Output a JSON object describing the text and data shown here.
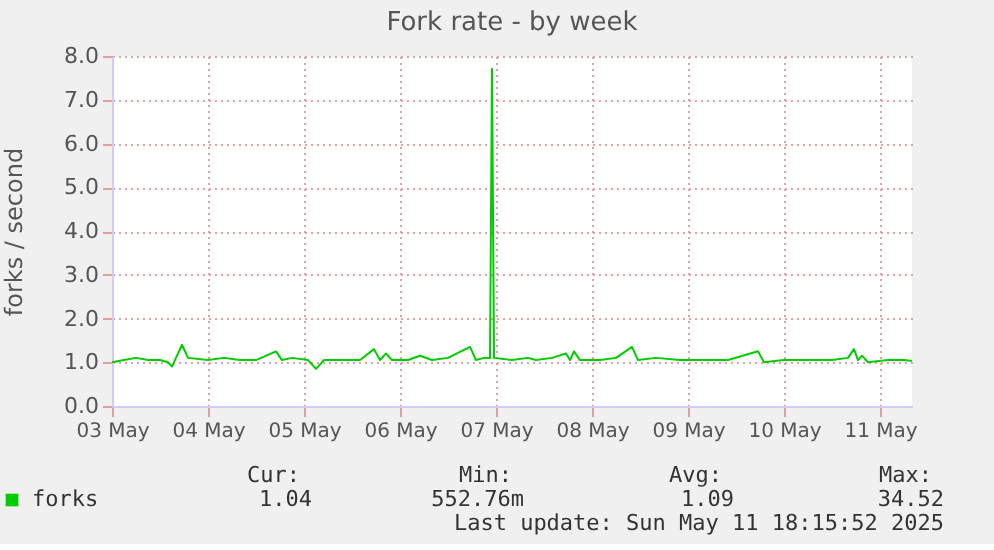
{
  "chart_data": {
    "type": "line",
    "title": "Fork rate - by week",
    "ylabel": "forks / second",
    "x": [
      "2025-05-03T00:00",
      "2025-05-03T03:00",
      "2025-05-03T06:00",
      "2025-05-03T09:00",
      "2025-05-03T12:00",
      "2025-05-03T14:00",
      "2025-05-03T15:00",
      "2025-05-03T16:00",
      "2025-05-03T17:30",
      "2025-05-03T19:00",
      "2025-05-04T00:00",
      "2025-05-04T04:00",
      "2025-05-04T08:00",
      "2025-05-04T12:00",
      "2025-05-04T17:00",
      "2025-05-04T18:30",
      "2025-05-04T21:00",
      "2025-05-05T01:00",
      "2025-05-05T03:00",
      "2025-05-05T05:00",
      "2025-05-05T10:00",
      "2025-05-05T14:00",
      "2025-05-05T17:30",
      "2025-05-05T19:00",
      "2025-05-05T20:30",
      "2025-05-05T22:00",
      "2025-05-06T02:00",
      "2025-05-06T05:00",
      "2025-05-06T08:00",
      "2025-05-06T12:00",
      "2025-05-06T17:30",
      "2025-05-06T19:00",
      "2025-05-06T21:00",
      "2025-05-06T22:30",
      "2025-05-06T23:00",
      "2025-05-06T23:30",
      "2025-05-07T04:00",
      "2025-05-07T08:00",
      "2025-05-07T10:00",
      "2025-05-07T14:00",
      "2025-05-07T17:30",
      "2025-05-07T18:30",
      "2025-05-07T19:30",
      "2025-05-07T21:00",
      "2025-05-08T02:00",
      "2025-05-08T06:00",
      "2025-05-08T10:00",
      "2025-05-08T11:30",
      "2025-05-08T16:00",
      "2025-05-08T22:00",
      "2025-05-09T04:00",
      "2025-05-09T10:00",
      "2025-05-09T17:30",
      "2025-05-09T19:00",
      "2025-05-10T00:00",
      "2025-05-10T06:00",
      "2025-05-10T12:00",
      "2025-05-10T16:00",
      "2025-05-10T17:30",
      "2025-05-10T18:30",
      "2025-05-10T19:30",
      "2025-05-10T21:00",
      "2025-05-11T02:00",
      "2025-05-11T06:00",
      "2025-05-11T08:00"
    ],
    "series": [
      {
        "name": "forks",
        "color": "#00cc00",
        "values": [
          1.0,
          1.05,
          1.1,
          1.05,
          1.05,
          1.0,
          0.9,
          1.1,
          1.4,
          1.1,
          1.05,
          1.1,
          1.05,
          1.05,
          1.25,
          1.05,
          1.1,
          1.05,
          0.85,
          1.05,
          1.05,
          1.05,
          1.3,
          1.05,
          1.2,
          1.05,
          1.05,
          1.15,
          1.05,
          1.1,
          1.35,
          1.05,
          1.1,
          1.1,
          7.7,
          1.1,
          1.05,
          1.1,
          1.05,
          1.1,
          1.2,
          1.05,
          1.25,
          1.05,
          1.05,
          1.1,
          1.35,
          1.05,
          1.1,
          1.05,
          1.05,
          1.05,
          1.25,
          1.0,
          1.05,
          1.05,
          1.05,
          1.1,
          1.3,
          1.05,
          1.15,
          1.0,
          1.05,
          1.05,
          1.03
        ]
      }
    ],
    "xlim": [
      "2025-05-03",
      "2025-05-11T08:00"
    ],
    "xticks": [
      {
        "value": "2025-05-03",
        "label": "03 May"
      },
      {
        "value": "2025-05-04",
        "label": "04 May"
      },
      {
        "value": "2025-05-05",
        "label": "05 May"
      },
      {
        "value": "2025-05-06",
        "label": "06 May"
      },
      {
        "value": "2025-05-07",
        "label": "07 May"
      },
      {
        "value": "2025-05-08",
        "label": "08 May"
      },
      {
        "value": "2025-05-09",
        "label": "09 May"
      },
      {
        "value": "2025-05-10",
        "label": "10 May"
      },
      {
        "value": "2025-05-11",
        "label": "11 May"
      }
    ],
    "ylim": [
      0,
      8
    ],
    "yticks": [
      {
        "value": 0,
        "label": "0.0"
      },
      {
        "value": 1,
        "label": "1.0"
      },
      {
        "value": 2,
        "label": "2.0"
      },
      {
        "value": 3,
        "label": "3.0"
      },
      {
        "value": 4,
        "label": "4.0"
      },
      {
        "value": 5,
        "label": "5.0"
      },
      {
        "value": 6,
        "label": "6.0"
      },
      {
        "value": 7,
        "label": "7.0"
      },
      {
        "value": 8,
        "label": "8.0"
      }
    ],
    "grid": true,
    "legend": "bottom",
    "line_style": "solid",
    "marker": "none",
    "annotations": [
      "Cur:",
      "Min:",
      "Avg:",
      "Max:",
      "1.04",
      "552.76m",
      "1.09",
      "34.52",
      "Last update: Sun May 11 18:15:52 2025"
    ]
  }
}
